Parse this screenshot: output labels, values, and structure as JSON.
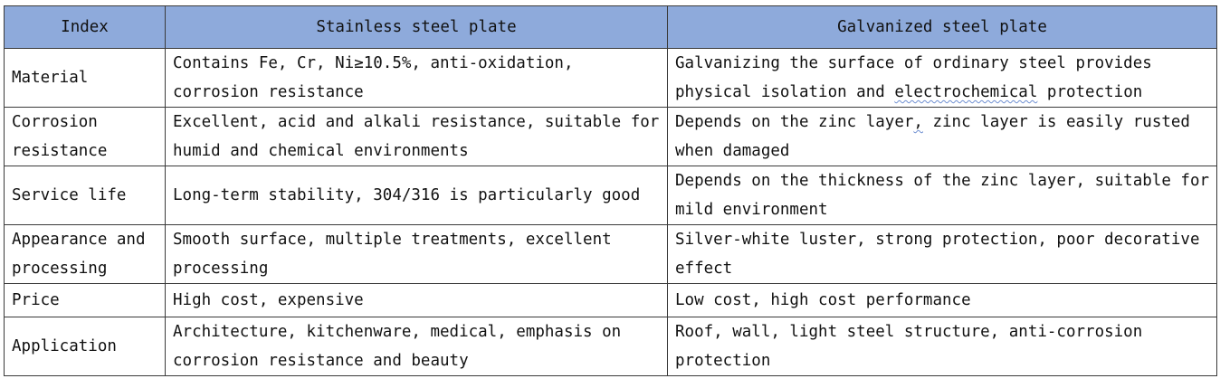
{
  "table": {
    "headers": [
      "Index",
      "Stainless steel plate",
      "Galvanized steel plate"
    ],
    "rows": [
      {
        "index": "Material",
        "stainless": "Contains Fe, Cr, Ni≥10.5%, anti-oxidation, corrosion resistance",
        "galvanized_pre": "Galvanizing the surface of ordinary steel provides physical isolation and ",
        "galvanized_flag": "electrochemical",
        "galvanized_post": " protection"
      },
      {
        "index": "Corrosion resistance",
        "stainless": "Excellent, acid and alkali resistance, suitable for humid and chemical environments",
        "galvanized_pre": "Depends on the zinc layer",
        "galvanized_flag": ",",
        "galvanized_post": " zinc layer is easily rusted when damaged"
      },
      {
        "index": "Service life",
        "stainless": "Long-term stability, 304/316 is particularly good",
        "galvanized": "Depends on the thickness of the zinc layer, suitable for mild environment"
      },
      {
        "index": "Appearance and processing",
        "stainless": "Smooth surface, multiple treatments, excellent processing",
        "galvanized": "Silver-white luster, strong protection, poor decorative effect"
      },
      {
        "index": "Price",
        "stainless": "High cost, expensive",
        "galvanized": "Low cost, high cost performance"
      },
      {
        "index": "Application",
        "stainless": "Architecture, kitchenware, medical, emphasis on corrosion resistance and beauty",
        "galvanized": "Roof, wall, light steel structure, anti-corrosion protection"
      }
    ]
  },
  "colors": {
    "header_background": "#8eaadb",
    "border": "#3a3a3a",
    "spellcheck_underline": "#6f8fd1"
  }
}
